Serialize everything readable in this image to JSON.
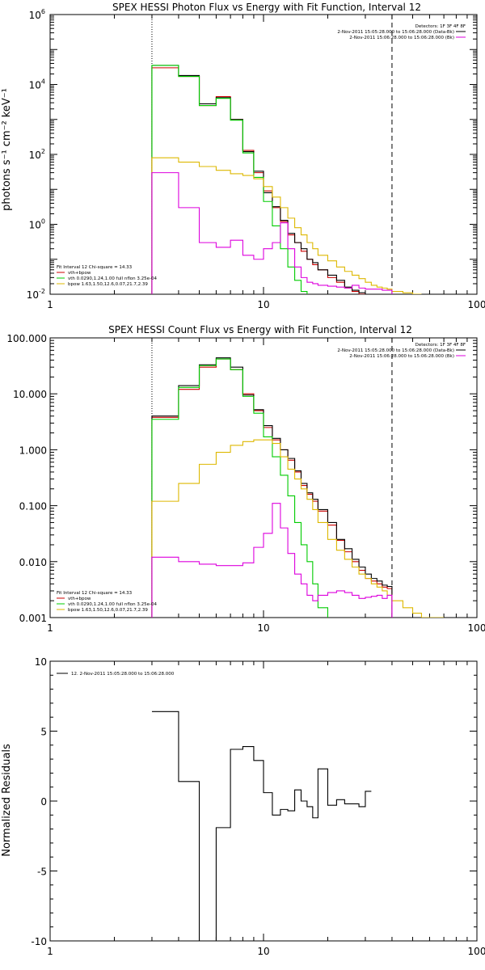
{
  "colors": {
    "data": "#000000",
    "total": "#cc0000",
    "vth": "#00cc00",
    "bpow": "#ddb800",
    "bk": "#dd00dd"
  },
  "chart_data": [
    {
      "type": "line",
      "title": "SPEX HESSI Photon Flux vs Energy with Fit Function, Interval 12",
      "ylabel": "photons s⁻¹ cm⁻² keV⁻¹",
      "xscale": "log",
      "yscale": "log",
      "xlim": [
        1,
        100
      ],
      "ylim": [
        0.01,
        1000000
      ],
      "x_ticks": [
        "1",
        "10",
        "100"
      ],
      "y_ticks": [
        "10-2",
        "100",
        "102",
        "104",
        "106"
      ],
      "vlines": [
        {
          "x": 3,
          "style": "dotted"
        },
        {
          "x": 40,
          "style": "dashed"
        }
      ],
      "legend_top": [
        "Detectors: 1F 3F 4F 8F",
        "2-Nov-2011 15:05:28.000 to 15:06:28.000 (Data-Bk)",
        "2-Nov-2011 15:06:28.000 to 15:06:28.000 (Bk)"
      ],
      "legend_bottom": [
        "Fit Interval 12    Chi-square = 14.33",
        "vth+bpow",
        "vth 0.0290,1.24,1.00  full nflon 3.25e-04",
        "bpow 1.63,1.50,12.6,0.07,21.7,2.39"
      ],
      "edges": [
        3,
        4,
        5,
        6,
        7,
        8,
        9,
        10,
        11,
        12,
        13,
        14,
        15,
        16,
        17,
        18,
        20,
        22,
        24,
        26,
        28,
        30,
        32,
        34,
        36,
        38,
        40,
        45,
        50,
        55
      ],
      "series": [
        {
          "key": "total",
          "color": "total",
          "values": [
            30000,
            17000,
            2500,
            4500,
            1000,
            130,
            30,
            9,
            3,
            1.2,
            0.5,
            0.3,
            0.17,
            0.1,
            0.07,
            0.05,
            0.03,
            0.022,
            0.015,
            0.012,
            0.01,
            0.009,
            0.008,
            0.007,
            0.006,
            0.005,
            null,
            null,
            null
          ]
        },
        {
          "key": "data",
          "color": "data",
          "values": [
            35000,
            18000,
            2800,
            4200,
            1000,
            120,
            33,
            8,
            3.2,
            1.3,
            0.55,
            0.3,
            0.2,
            0.1,
            0.08,
            0.05,
            0.035,
            0.025,
            0.016,
            0.013,
            0.011,
            0.009,
            0.008,
            0.007,
            0.006,
            0.006,
            null,
            null,
            null
          ]
        },
        {
          "key": "vth",
          "color": "vth",
          "values": [
            35000,
            17000,
            2500,
            4000,
            950,
            110,
            22,
            4.5,
            0.9,
            0.2,
            0.06,
            0.025,
            0.012,
            null,
            null,
            null,
            null,
            null,
            null,
            null,
            null,
            null,
            null,
            null,
            null,
            null,
            null,
            null,
            null
          ]
        },
        {
          "key": "bpow",
          "color": "bpow",
          "values": [
            80,
            60,
            45,
            35,
            28,
            25,
            20,
            12,
            6,
            3,
            1.5,
            0.8,
            0.5,
            0.3,
            0.2,
            0.13,
            0.09,
            0.06,
            0.045,
            0.035,
            0.028,
            0.022,
            0.018,
            0.016,
            0.015,
            0.014,
            0.012,
            0.011,
            0.01
          ]
        },
        {
          "key": "bk",
          "color": "bk",
          "values": [
            30,
            3,
            0.3,
            0.22,
            0.35,
            0.13,
            0.1,
            0.2,
            0.3,
            1.1,
            0.2,
            0.06,
            0.03,
            0.022,
            0.02,
            0.018,
            0.017,
            0.016,
            0.015,
            0.018,
            0.015,
            0.014,
            0.014,
            0.014,
            0.013,
            0.013,
            null,
            null,
            null
          ]
        }
      ]
    },
    {
      "type": "line",
      "title": "SPEX HESSI Count Flux vs Energy with Fit Function, Interval 12",
      "xscale": "log",
      "yscale": "log",
      "xlim": [
        1,
        100
      ],
      "ylim": [
        0.001,
        100
      ],
      "x_ticks": [
        "1",
        "10",
        "100"
      ],
      "y_ticks": [
        "0.001",
        "0.010",
        "0.100",
        "1.000",
        "10.000",
        "100.000"
      ],
      "vlines": [
        {
          "x": 3,
          "style": "dotted"
        },
        {
          "x": 40,
          "style": "dashed"
        }
      ],
      "legend_top": [
        "Detectors: 1F 3F 4F 8F",
        "2-Nov-2011 15:05:28.000 to 15:06:28.000 (Data-Bk)",
        "2-Nov-2011 15:06:28.000 to 15:06:28.000 (Bk)"
      ],
      "legend_bottom": [
        "Fit Interval 12    Chi-square = 14.33",
        "vth+bpow",
        "vth 0.0290,1.24,1.00  full nflon 3.25e-04",
        "bpow 1.63,1.50,12.6,0.07,21.7,2.39"
      ],
      "edges": [
        3,
        4,
        5,
        6,
        7,
        8,
        9,
        10,
        11,
        12,
        13,
        14,
        15,
        16,
        17,
        18,
        20,
        22,
        24,
        26,
        28,
        30,
        32,
        34,
        36,
        38,
        40,
        45,
        50,
        55,
        60,
        65,
        70
      ],
      "series": [
        {
          "key": "total",
          "color": "total",
          "values": [
            3.8,
            12,
            30,
            42,
            27,
            10,
            5,
            2.5,
            1.5,
            1,
            0.65,
            0.4,
            0.23,
            0.16,
            0.12,
            0.08,
            0.045,
            0.024,
            0.015,
            0.01,
            0.007,
            0.005,
            0.0045,
            0.004,
            0.0035,
            0.0033,
            null,
            null,
            null,
            null,
            null,
            null
          ]
        },
        {
          "key": "data",
          "color": "data",
          "values": [
            4,
            14,
            33,
            44,
            30,
            9.5,
            5.2,
            2.7,
            1.6,
            1,
            0.7,
            0.42,
            0.25,
            0.17,
            0.13,
            0.085,
            0.05,
            0.025,
            0.017,
            0.011,
            0.008,
            0.006,
            0.005,
            0.0045,
            0.0038,
            0.0036,
            null,
            null,
            null,
            null,
            null,
            null
          ]
        },
        {
          "key": "vth",
          "color": "vth",
          "values": [
            3.5,
            13,
            32,
            42,
            27,
            9,
            4.5,
            1.7,
            0.75,
            0.35,
            0.15,
            0.05,
            0.02,
            0.01,
            0.004,
            0.0015,
            null,
            null,
            null,
            null,
            null,
            null,
            null,
            null,
            null,
            null,
            null,
            null,
            null,
            null,
            null,
            null
          ]
        },
        {
          "key": "bpow",
          "color": "bpow",
          "values": [
            0.12,
            0.25,
            0.55,
            0.9,
            1.2,
            1.4,
            1.5,
            1.5,
            1.3,
            0.75,
            0.45,
            0.3,
            0.2,
            0.13,
            0.085,
            0.05,
            0.025,
            0.016,
            0.011,
            0.008,
            0.006,
            0.005,
            0.004,
            0.0035,
            0.003,
            0.0025,
            0.002,
            0.0015,
            0.0012,
            0.001,
            0.0008,
            0.0007
          ]
        },
        {
          "key": "bk",
          "color": "bk",
          "values": [
            0.012,
            0.01,
            0.009,
            0.0085,
            0.0085,
            0.0095,
            0.018,
            0.032,
            0.11,
            0.04,
            0.014,
            0.006,
            0.004,
            0.0025,
            0.002,
            0.0025,
            0.0028,
            0.003,
            0.0028,
            0.0025,
            0.0022,
            0.0023,
            0.0024,
            0.0025,
            0.0022,
            0.0025,
            null,
            null,
            null,
            null,
            null,
            null
          ]
        }
      ]
    },
    {
      "type": "line",
      "ylabel": "Normalized Residuals",
      "xscale": "log",
      "yscale": "linear",
      "xlim": [
        1,
        100
      ],
      "ylim": [
        -10,
        10
      ],
      "x_ticks": [
        "1",
        "10",
        "100"
      ],
      "y_ticks": [
        "-10",
        "-5",
        "0",
        "5",
        "10"
      ],
      "legend_top": [
        "12.  2-Nov-2011 15:05:28.000 to 15:06:28.000"
      ],
      "edges": [
        3,
        4,
        5,
        6,
        7,
        8,
        9,
        10,
        11,
        12,
        13,
        14,
        15,
        16,
        17,
        18,
        20,
        22,
        24,
        26,
        28,
        30,
        32,
        34,
        36,
        38,
        40,
        42
      ],
      "series": [
        {
          "key": "residuals",
          "color": "data",
          "values": [
            6.4,
            1.4,
            -10,
            -1.9,
            3.7,
            3.9,
            2.9,
            0.6,
            -1.0,
            -0.6,
            -0.7,
            0.8,
            0.0,
            -0.4,
            -1.2,
            2.3,
            -0.3,
            0.1,
            -0.2,
            -0.2,
            -0.4,
            0.7,
            null,
            null,
            null,
            null,
            null
          ]
        }
      ]
    }
  ]
}
